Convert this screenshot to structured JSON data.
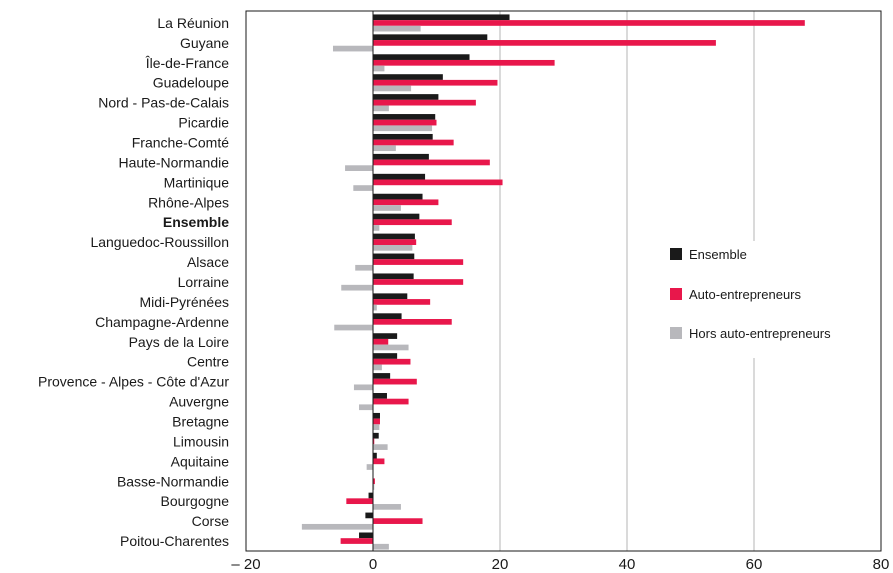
{
  "chart_data": {
    "type": "bar",
    "orientation": "horizontal",
    "categories": [
      "La Réunion",
      "Guyane",
      "Île-de-France",
      "Guadeloupe",
      "Nord - Pas-de-Calais",
      "Picardie",
      "Franche-Comté",
      "Haute-Normandie",
      "Martinique",
      "Rhône-Alpes",
      "Ensemble",
      "Languedoc-Roussillon",
      "Alsace",
      "Lorraine",
      "Midi-Pyrénées",
      "Champagne-Ardenne",
      "Pays de la Loire",
      "Centre",
      "Provence - Alpes - Côte d'Azur",
      "Auvergne",
      "Bretagne",
      "Limousin",
      "Aquitaine",
      "Basse-Normandie",
      "Bourgogne",
      "Corse",
      "Poitou-Charentes"
    ],
    "bold_category": "Ensemble",
    "series": [
      {
        "name": "Ensemble",
        "color": "#1a1a1a",
        "values": [
          21.5,
          18,
          15.2,
          11,
          10.3,
          9.8,
          9.4,
          8.8,
          8.2,
          7.8,
          7.3,
          6.6,
          6.5,
          6.4,
          5.4,
          4.5,
          3.8,
          3.8,
          2.7,
          2.2,
          1.1,
          0.9,
          0.6,
          0,
          -0.7,
          -1.2,
          -2.2
        ]
      },
      {
        "name": "Auto-entrepreneurs",
        "color": "#e8174b",
        "values": [
          68,
          54,
          28.6,
          19.6,
          16.2,
          10,
          12.7,
          18.4,
          20.4,
          10.3,
          12.4,
          6.8,
          14.2,
          14.2,
          9,
          12.4,
          2.4,
          5.9,
          6.9,
          5.6,
          1.1,
          0.2,
          1.8,
          0.3,
          -4.2,
          7.8,
          -5.1
        ]
      },
      {
        "name": "Hors auto-entrepreneurs",
        "color": "#b8b8bc",
        "values": [
          7.5,
          -6.3,
          1.8,
          6,
          2.5,
          9.3,
          3.6,
          -4.4,
          -3.1,
          4.4,
          1,
          6.2,
          -2.8,
          -5,
          0.6,
          -6.1,
          5.6,
          1.4,
          -3,
          -2.2,
          1,
          2.3,
          -1,
          0.2,
          4.4,
          -11.2,
          2.5
        ]
      }
    ],
    "x_ticks": [
      "– 20",
      "0",
      "20",
      "40",
      "60",
      "80"
    ],
    "xlim": [
      -20,
      80
    ],
    "grid": "vertical",
    "legend_position": "right"
  }
}
